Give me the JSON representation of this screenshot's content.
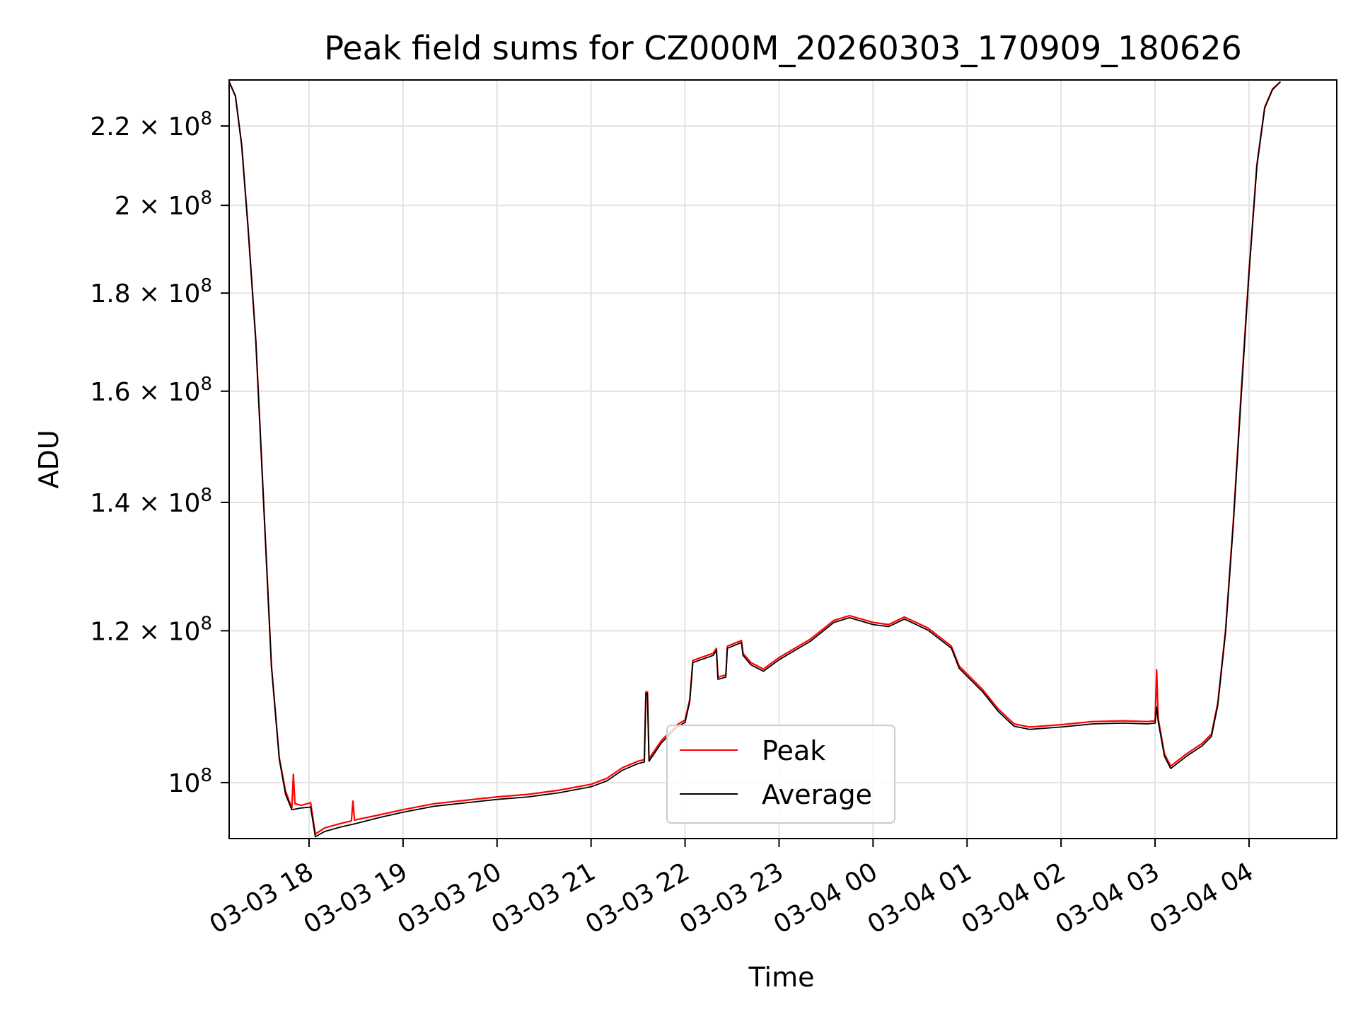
{
  "chart_data": {
    "type": "line",
    "title": "Peak field sums for CZ000M_20260303_170909_180626",
    "xlabel": "Time",
    "ylabel": "ADU",
    "y_scale": "log",
    "ylim": [
      93500000,
      232500000
    ],
    "xlim": [
      "03-03 17:09",
      "03-04 04:56"
    ],
    "grid": true,
    "legend_position": "lower-center",
    "x_ticks": [
      {
        "t": "03-03 18:00",
        "label": "03-03 18"
      },
      {
        "t": "03-03 19:00",
        "label": "03-03 19"
      },
      {
        "t": "03-03 20:00",
        "label": "03-03 20"
      },
      {
        "t": "03-03 21:00",
        "label": "03-03 21"
      },
      {
        "t": "03-03 22:00",
        "label": "03-03 22"
      },
      {
        "t": "03-03 23:00",
        "label": "03-03 23"
      },
      {
        "t": "03-04 00:00",
        "label": "03-04 00"
      },
      {
        "t": "03-04 01:00",
        "label": "03-04 01"
      },
      {
        "t": "03-04 02:00",
        "label": "03-04 02"
      },
      {
        "t": "03-04 03:00",
        "label": "03-04 03"
      },
      {
        "t": "03-04 04:00",
        "label": "03-04 04"
      }
    ],
    "y_ticks": [
      {
        "v": 100000000,
        "mant": "",
        "exp": "8"
      },
      {
        "v": 120000000,
        "mant": "1.2",
        "exp": "8"
      },
      {
        "v": 140000000,
        "mant": "1.4",
        "exp": "8"
      },
      {
        "v": 160000000,
        "mant": "1.6",
        "exp": "8"
      },
      {
        "v": 180000000,
        "mant": "1.8",
        "exp": "8"
      },
      {
        "v": 200000000,
        "mant": "2",
        "exp": "8"
      },
      {
        "v": 220000000,
        "mant": "2.2",
        "exp": "8"
      }
    ],
    "series": [
      {
        "name": "Peak",
        "color": "#ff0000",
        "points": [
          [
            "03-03 17:09",
            232000000
          ],
          [
            "03-03 17:13",
            228000000
          ],
          [
            "03-03 17:17",
            215000000
          ],
          [
            "03-03 17:21",
            195000000
          ],
          [
            "03-03 17:26",
            170000000
          ],
          [
            "03-03 17:31",
            140000000
          ],
          [
            "03-03 17:36",
            115000000
          ],
          [
            "03-03 17:41",
            103000000
          ],
          [
            "03-03 17:45",
            99000000
          ],
          [
            "03-03 17:49",
            97000000
          ],
          [
            "03-03 17:50",
            101000000
          ],
          [
            "03-03 17:51",
            97500000
          ],
          [
            "03-03 17:55",
            97300000
          ],
          [
            "03-03 18:01",
            97600000
          ],
          [
            "03-03 18:04",
            94000000
          ],
          [
            "03-03 18:10",
            94700000
          ],
          [
            "03-03 18:20",
            95200000
          ],
          [
            "03-03 18:27",
            95500000
          ],
          [
            "03-03 18:28",
            97800000
          ],
          [
            "03-03 18:29",
            95600000
          ],
          [
            "03-03 18:45",
            96200000
          ],
          [
            "03-03 19:00",
            96800000
          ],
          [
            "03-03 19:20",
            97500000
          ],
          [
            "03-03 19:40",
            97900000
          ],
          [
            "03-03 20:00",
            98300000
          ],
          [
            "03-03 20:20",
            98600000
          ],
          [
            "03-03 20:40",
            99100000
          ],
          [
            "03-03 21:00",
            99800000
          ],
          [
            "03-03 21:10",
            100500000
          ],
          [
            "03-03 21:20",
            101800000
          ],
          [
            "03-03 21:30",
            102600000
          ],
          [
            "03-03 21:34",
            102800000
          ],
          [
            "03-03 21:35",
            111500000
          ],
          [
            "03-03 21:36",
            111500000
          ],
          [
            "03-03 21:37",
            102900000
          ],
          [
            "03-03 21:45",
            105200000
          ],
          [
            "03-03 21:55",
            107200000
          ],
          [
            "03-03 22:00",
            107800000
          ],
          [
            "03-03 22:03",
            110500000
          ],
          [
            "03-03 22:05",
            115800000
          ],
          [
            "03-03 22:18",
            116800000
          ],
          [
            "03-03 22:20",
            117500000
          ],
          [
            "03-03 22:21",
            113500000
          ],
          [
            "03-03 22:26",
            113800000
          ],
          [
            "03-03 22:27",
            117800000
          ],
          [
            "03-03 22:36",
            118600000
          ],
          [
            "03-03 22:37",
            116800000
          ],
          [
            "03-03 22:42",
            115500000
          ],
          [
            "03-03 22:50",
            114600000
          ],
          [
            "03-03 23:00",
            116200000
          ],
          [
            "03-03 23:20",
            118800000
          ],
          [
            "03-03 23:35",
            121500000
          ],
          [
            "03-03 23:45",
            122200000
          ],
          [
            "03-04 00:00",
            121200000
          ],
          [
            "03-04 00:10",
            120900000
          ],
          [
            "03-04 00:20",
            122000000
          ],
          [
            "03-04 00:35",
            120400000
          ],
          [
            "03-04 00:50",
            117800000
          ],
          [
            "03-04 00:55",
            115000000
          ],
          [
            "03-04 01:10",
            111800000
          ],
          [
            "03-04 01:20",
            109200000
          ],
          [
            "03-04 01:30",
            107300000
          ],
          [
            "03-04 01:40",
            106900000
          ],
          [
            "03-04 02:00",
            107200000
          ],
          [
            "03-04 02:20",
            107600000
          ],
          [
            "03-04 02:40",
            107700000
          ],
          [
            "03-04 02:55",
            107600000
          ],
          [
            "03-04 03:00",
            107700000
          ],
          [
            "03-04 03:01",
            114500000
          ],
          [
            "03-04 03:02",
            108000000
          ],
          [
            "03-04 03:06",
            103500000
          ],
          [
            "03-04 03:10",
            102000000
          ],
          [
            "03-04 03:20",
            103500000
          ],
          [
            "03-04 03:30",
            104800000
          ],
          [
            "03-04 03:36",
            106000000
          ],
          [
            "03-04 03:40",
            110000000
          ],
          [
            "03-04 03:45",
            120000000
          ],
          [
            "03-04 03:50",
            137000000
          ],
          [
            "03-04 03:55",
            160000000
          ],
          [
            "03-04 04:00",
            185000000
          ],
          [
            "03-04 04:05",
            210000000
          ],
          [
            "03-04 04:10",
            225000000
          ],
          [
            "03-04 04:15",
            230000000
          ],
          [
            "03-04 04:20",
            232000000
          ]
        ]
      },
      {
        "name": "Average",
        "color": "#000000",
        "points": [
          [
            "03-03 17:09",
            232000000
          ],
          [
            "03-03 17:13",
            228000000
          ],
          [
            "03-03 17:17",
            215000000
          ],
          [
            "03-03 17:21",
            195000000
          ],
          [
            "03-03 17:26",
            170000000
          ],
          [
            "03-03 17:31",
            140000000
          ],
          [
            "03-03 17:36",
            115000000
          ],
          [
            "03-03 17:41",
            102800000
          ],
          [
            "03-03 17:45",
            98600000
          ],
          [
            "03-03 17:49",
            96800000
          ],
          [
            "03-03 17:55",
            97000000
          ],
          [
            "03-03 18:01",
            97100000
          ],
          [
            "03-03 18:04",
            93700000
          ],
          [
            "03-03 18:10",
            94300000
          ],
          [
            "03-03 18:20",
            94800000
          ],
          [
            "03-03 18:30",
            95200000
          ],
          [
            "03-03 18:45",
            95900000
          ],
          [
            "03-03 19:00",
            96500000
          ],
          [
            "03-03 19:20",
            97200000
          ],
          [
            "03-03 19:40",
            97600000
          ],
          [
            "03-03 20:00",
            98000000
          ],
          [
            "03-03 20:20",
            98300000
          ],
          [
            "03-03 20:40",
            98800000
          ],
          [
            "03-03 21:00",
            99500000
          ],
          [
            "03-03 21:10",
            100200000
          ],
          [
            "03-03 21:20",
            101500000
          ],
          [
            "03-03 21:30",
            102300000
          ],
          [
            "03-03 21:34",
            102500000
          ],
          [
            "03-03 21:35",
            111300000
          ],
          [
            "03-03 21:36",
            111300000
          ],
          [
            "03-03 21:37",
            102600000
          ],
          [
            "03-03 21:45",
            104900000
          ],
          [
            "03-03 21:55",
            106900000
          ],
          [
            "03-03 22:00",
            107500000
          ],
          [
            "03-03 22:03",
            110200000
          ],
          [
            "03-03 22:05",
            115500000
          ],
          [
            "03-03 22:18",
            116500000
          ],
          [
            "03-03 22:20",
            117200000
          ],
          [
            "03-03 22:21",
            113200000
          ],
          [
            "03-03 22:26",
            113500000
          ],
          [
            "03-03 22:27",
            117500000
          ],
          [
            "03-03 22:36",
            118300000
          ],
          [
            "03-03 22:37",
            116500000
          ],
          [
            "03-03 22:42",
            115200000
          ],
          [
            "03-03 22:50",
            114300000
          ],
          [
            "03-03 23:00",
            115900000
          ],
          [
            "03-03 23:20",
            118500000
          ],
          [
            "03-03 23:35",
            121200000
          ],
          [
            "03-03 23:45",
            121900000
          ],
          [
            "03-04 00:00",
            120900000
          ],
          [
            "03-04 00:10",
            120600000
          ],
          [
            "03-04 00:20",
            121700000
          ],
          [
            "03-04 00:35",
            120100000
          ],
          [
            "03-04 00:50",
            117500000
          ],
          [
            "03-04 00:55",
            114700000
          ],
          [
            "03-04 01:10",
            111500000
          ],
          [
            "03-04 01:20",
            108900000
          ],
          [
            "03-04 01:30",
            107000000
          ],
          [
            "03-04 01:40",
            106600000
          ],
          [
            "03-04 02:00",
            106900000
          ],
          [
            "03-04 02:20",
            107300000
          ],
          [
            "03-04 02:40",
            107400000
          ],
          [
            "03-04 02:55",
            107300000
          ],
          [
            "03-04 03:00",
            107400000
          ],
          [
            "03-04 03:01",
            109500000
          ],
          [
            "03-04 03:02",
            107600000
          ],
          [
            "03-04 03:06",
            103200000
          ],
          [
            "03-04 03:10",
            101700000
          ],
          [
            "03-04 03:20",
            103200000
          ],
          [
            "03-04 03:30",
            104500000
          ],
          [
            "03-04 03:36",
            105700000
          ],
          [
            "03-04 03:40",
            109700000
          ],
          [
            "03-04 03:45",
            119700000
          ],
          [
            "03-04 03:50",
            136500000
          ],
          [
            "03-04 03:55",
            159000000
          ],
          [
            "03-04 04:00",
            184500000
          ],
          [
            "03-04 04:05",
            209500000
          ],
          [
            "03-04 04:10",
            224800000
          ],
          [
            "03-04 04:15",
            229800000
          ],
          [
            "03-04 04:20",
            232000000
          ]
        ]
      }
    ]
  }
}
